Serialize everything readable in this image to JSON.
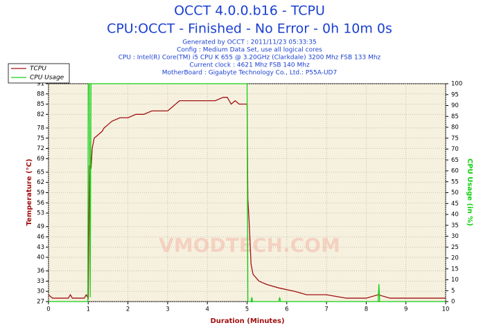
{
  "chart_data": {
    "type": "line",
    "title": "OCCT 4.0.0.b16 - TCPU",
    "subtitle": "CPU:OCCT - Finished - No Error - 0h 10m 0s",
    "info_lines": [
      "Generated by OCCT : 2011/11/23 05:33:35",
      "Config : Medium Data Set, use all logical cores",
      "CPU : Intel(R) Core(TM) i5 CPU K 655 @ 3.20GHz (Clarkdale) 3200 Mhz FSB 133 Mhz",
      "Current clock : 4621 Mhz FSB 140 Mhz",
      "MotherBoard : Gigabyte Technology Co., Ltd.: P55A-UD7"
    ],
    "watermark": "VMODTECH.COM",
    "x_label": "Duration (Minutes)",
    "y_label": "Temperature (°C)",
    "y2_label": "CPU Usage (in %)",
    "xlim": [
      0,
      10
    ],
    "xticks": [
      0,
      1,
      2,
      3,
      4,
      5,
      6,
      7,
      8,
      9,
      10
    ],
    "ylim": [
      27,
      91
    ],
    "yticks": [
      27,
      30,
      33,
      36,
      40,
      43,
      46,
      49,
      53,
      56,
      59,
      62,
      65,
      69,
      72,
      75,
      78,
      82,
      85,
      88,
      91
    ],
    "y2lim": [
      0,
      100
    ],
    "y2ticks": [
      0,
      5,
      10,
      15,
      20,
      25,
      30,
      35,
      40,
      45,
      50,
      55,
      60,
      65,
      70,
      75,
      80,
      85,
      90,
      95,
      100
    ],
    "grid": true,
    "legend": "top-left",
    "series": [
      {
        "name": "TCPU",
        "color": "#a01010",
        "x": [
          0,
          0.1,
          0.5,
          0.55,
          0.6,
          0.9,
          0.95,
          1.0,
          1.03,
          1.07,
          1.1,
          1.15,
          1.25,
          1.35,
          1.4,
          1.5,
          1.6,
          1.8,
          2.0,
          2.2,
          2.4,
          2.6,
          2.8,
          3.0,
          3.1,
          3.3,
          3.5,
          3.8,
          4.0,
          4.2,
          4.4,
          4.5,
          4.6,
          4.7,
          4.8,
          5.0,
          5.02,
          5.05,
          5.1,
          5.15,
          5.3,
          5.5,
          5.8,
          6.2,
          6.5,
          7.0,
          7.5,
          8.0,
          8.3,
          8.6,
          9.0,
          9.5,
          10.0
        ],
        "values": [
          29,
          28,
          28,
          29,
          28,
          28,
          29,
          28,
          67,
          66,
          72,
          75,
          76,
          77,
          78,
          79,
          80,
          81,
          81,
          82,
          82,
          83,
          83,
          83,
          84,
          86,
          86,
          86,
          86,
          86,
          87,
          87,
          85,
          86,
          85,
          85,
          57,
          51,
          38,
          35,
          33,
          32,
          31,
          30,
          29,
          29,
          28,
          28,
          29,
          28,
          28,
          28,
          28
        ]
      },
      {
        "name": "CPU Usage",
        "color": "#10d010",
        "axis": "y2",
        "x": [
          0,
          0.99,
          1.0,
          1.03,
          1.05,
          1.07,
          5.0,
          5.02,
          5.1,
          5.12,
          5.14,
          5.8,
          5.82,
          5.84,
          8.3,
          8.32,
          8.34,
          10.0
        ],
        "values": [
          0,
          0,
          100,
          100,
          2,
          100,
          100,
          0,
          0,
          2,
          0,
          0,
          2,
          0,
          0,
          8,
          0,
          0
        ]
      }
    ]
  }
}
